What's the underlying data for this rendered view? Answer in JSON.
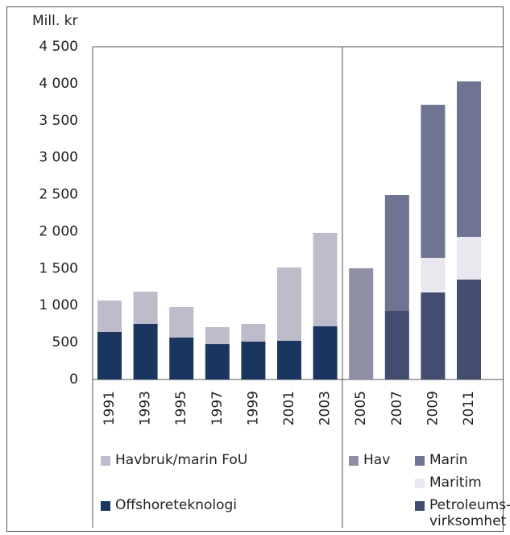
{
  "chart_data": {
    "type": "stacked_bar",
    "y_label": "Mill. kr",
    "categories": [
      "1991",
      "1993",
      "1995",
      "1997",
      "1999",
      "2001",
      "2003",
      "2005",
      "2007",
      "2009",
      "2011"
    ],
    "series": [
      {
        "name": "Offshoreteknologi",
        "color": "#1a3560",
        "values": [
          643,
          752,
          567,
          479,
          512,
          523,
          719,
          null,
          null,
          null,
          null
        ]
      },
      {
        "name": "Havbruk/marin FoU",
        "color": "#bdbccb",
        "values": [
          425,
          436,
          414,
          229,
          240,
          992,
          1264,
          null,
          null,
          null,
          null
        ]
      },
      {
        "name": "Petroleums-virksomhet",
        "color": "#424d70",
        "values": [
          null,
          null,
          null,
          null,
          null,
          null,
          null,
          null,
          926,
          1177,
          1351
        ]
      },
      {
        "name": "Maritim",
        "color": "#e8e8ee",
        "values": [
          null,
          null,
          null,
          null,
          null,
          null,
          null,
          null,
          null,
          468,
          578
        ]
      },
      {
        "name": "Marin",
        "color": "#6e7491",
        "values": [
          null,
          null,
          null,
          null,
          null,
          null,
          null,
          null,
          1569,
          2070,
          2102
        ]
      },
      {
        "name": "Hav",
        "color": "#8f8fa3",
        "values": [
          null,
          null,
          null,
          null,
          null,
          null,
          null,
          1504,
          null,
          null,
          null
        ]
      }
    ],
    "ylim": [
      0,
      4500
    ],
    "yticks": [
      0,
      500,
      {
        "value": 1000,
        "label": "1 000"
      },
      {
        "value": 1500,
        "label": "1 500"
      },
      {
        "value": 2000,
        "label": "2 000"
      },
      {
        "value": 2500,
        "label": "2 500"
      },
      {
        "value": 3000,
        "label": "3 000"
      },
      {
        "value": 3500,
        "label": "3 500"
      },
      {
        "value": 4000,
        "label": "4 000"
      },
      {
        "value": 4500,
        "label": "4 500"
      }
    ],
    "grid": false
  }
}
